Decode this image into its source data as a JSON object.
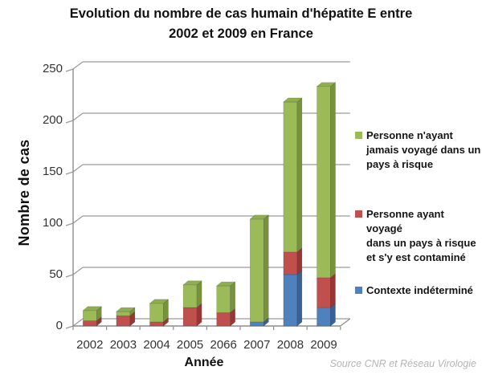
{
  "title": {
    "line1": "Evolution du nombre de cas humain d'hépatite E entre",
    "line2": "2002 et 2009 en France"
  },
  "y_axis": {
    "title": "Nombre de cas",
    "ticks": [
      0,
      50,
      100,
      150,
      200,
      250
    ]
  },
  "x_axis": {
    "title": "Année",
    "categories": [
      "2002",
      "2003",
      "2004",
      "2005",
      "2066",
      "2007",
      "2008",
      "2009"
    ]
  },
  "source_note": "Source CNR et Réseau Virologie",
  "colors": {
    "grid": "#9b9b9b",
    "axis": "#8c8c8c",
    "green": "#9BBB59",
    "red": "#C0504D",
    "blue": "#4F81BD"
  },
  "legend": {
    "position": "right",
    "items": [
      {
        "swatch_color": "#9BBB59",
        "lines": [
          "Personne n'ayant",
          "jamais voyagé dans un",
          "pays à risque"
        ]
      },
      {
        "swatch_color": "#C0504D",
        "lines": [
          "Personne ayant voyagé",
          "dans un pays à risque",
          "et s'y est contaminé"
        ]
      },
      {
        "swatch_color": "#4F81BD",
        "lines": [
          "Contexte indéterminé"
        ]
      }
    ]
  },
  "chart_data": {
    "type": "bar",
    "stacked": true,
    "style": "3d-column",
    "title": "Evolution du nombre de cas humain d'hépatite E entre 2002 et 2009 en France",
    "xlabel": "Année",
    "ylabel": "Nombre de cas",
    "ylim": [
      0,
      250
    ],
    "yticks": [
      0,
      50,
      100,
      150,
      200,
      250
    ],
    "grid": true,
    "legend_position": "right",
    "annotation": "Source CNR et Réseau Virologie",
    "categories": [
      "2002",
      "2003",
      "2004",
      "2005",
      "2066",
      "2007",
      "2008",
      "2009"
    ],
    "series": [
      {
        "name": "Contexte indéterminé",
        "color": {
          "front": "#4F81BD",
          "side": "#3A6191",
          "top": "#6C93C4"
        },
        "values": [
          0,
          0,
          0,
          0,
          0,
          4,
          50,
          18
        ]
      },
      {
        "name": "Personne ayant voyagé dans un pays à risque et s'y est contaminé",
        "color": {
          "front": "#C0504D",
          "side": "#953735",
          "top": "#B04A47"
        },
        "values": [
          5,
          10,
          4,
          18,
          13,
          0,
          22,
          29
        ]
      },
      {
        "name": "Personne n'ayant jamais voyagé dans un pays à risque",
        "color": {
          "front": "#9BBB59",
          "side": "#76923C",
          "top": "#8FAD51"
        },
        "values": [
          10,
          4,
          18,
          22,
          26,
          100,
          146,
          186
        ]
      }
    ],
    "totals": [
      15,
      14,
      22,
      40,
      39,
      104,
      218,
      233
    ]
  }
}
